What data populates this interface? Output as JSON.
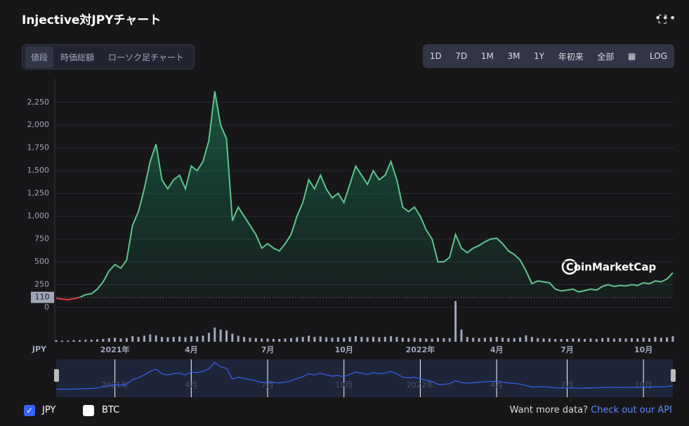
{
  "header": {
    "title": "Injective対JPYチャート"
  },
  "tabs": [
    "値段",
    "時価総額",
    "ローソク足チャート"
  ],
  "ranges": [
    "1D",
    "7D",
    "1M",
    "3M",
    "1Y",
    "年初来",
    "全部",
    "LOG"
  ],
  "watermark": "CoinMarketCap",
  "legend": [
    "JPY",
    "BTC"
  ],
  "footer": {
    "text": "Want more data?",
    "link": "Check out our API"
  },
  "chart_data": {
    "type": "line",
    "y_label": "JPY",
    "color": "#5ec48b",
    "down_color": "#ea3943",
    "nav_color": "#3861fb",
    "reference_line": 110,
    "ylim": [
      0,
      2510
    ],
    "yticks": [
      0,
      250,
      500,
      750,
      {
        "value": 1000,
        "label": "1,000"
      },
      {
        "value": 1250,
        "label": "1,250"
      },
      {
        "value": 1500,
        "label": "1,500"
      },
      {
        "value": 1750,
        "label": "1,750"
      },
      {
        "value": 2000,
        "label": "2,000"
      },
      {
        "value": 2250,
        "label": "2,250"
      }
    ],
    "grid": true,
    "categories": [
      null,
      null,
      null,
      null,
      null,
      null,
      null,
      null,
      null,
      null,
      "2021年",
      null,
      null,
      null,
      null,
      null,
      null,
      null,
      null,
      null,
      null,
      null,
      null,
      "4月",
      null,
      null,
      null,
      null,
      null,
      null,
      null,
      null,
      null,
      null,
      null,
      null,
      "7月",
      null,
      null,
      null,
      null,
      null,
      null,
      null,
      null,
      null,
      null,
      null,
      null,
      "10月",
      null,
      null,
      null,
      null,
      null,
      null,
      null,
      null,
      null,
      null,
      null,
      null,
      "2022年",
      null,
      null,
      null,
      null,
      null,
      null,
      null,
      null,
      null,
      null,
      null,
      null,
      "4月",
      null,
      null,
      null,
      null,
      null,
      null,
      null,
      null,
      null,
      null,
      null,
      "7月",
      null,
      null,
      null,
      null,
      null,
      null,
      null,
      null,
      null,
      null,
      null,
      null,
      "10月",
      null,
      null,
      null,
      null,
      null
    ],
    "series": [
      {
        "name": "JPY",
        "values": [
          100,
          90,
          85,
          95,
          110,
          140,
          150,
          200,
          280,
          400,
          470,
          430,
          520,
          900,
          1050,
          1300,
          1600,
          1790,
          1400,
          1300,
          1400,
          1450,
          1300,
          1550,
          1500,
          1600,
          1830,
          2370,
          2000,
          1850,
          950,
          1100,
          1000,
          900,
          800,
          650,
          700,
          650,
          620,
          700,
          800,
          1000,
          1150,
          1400,
          1300,
          1450,
          1300,
          1200,
          1250,
          1150,
          1350,
          1550,
          1450,
          1350,
          1500,
          1400,
          1450,
          1600,
          1400,
          1100,
          1050,
          1100,
          1000,
          850,
          750,
          500,
          500,
          550,
          800,
          650,
          600,
          650,
          680,
          720,
          750,
          760,
          700,
          620,
          580,
          520,
          400,
          260,
          290,
          280,
          270,
          200,
          180,
          190,
          200,
          170,
          185,
          200,
          190,
          230,
          250,
          230,
          240,
          235,
          250,
          240,
          270,
          260,
          290,
          280,
          310,
          380
        ]
      }
    ],
    "volume": [
      4,
      3,
      3,
      4,
      4,
      5,
      5,
      6,
      7,
      9,
      10,
      8,
      9,
      14,
      12,
      15,
      18,
      16,
      12,
      11,
      12,
      13,
      11,
      14,
      13,
      15,
      22,
      35,
      30,
      28,
      20,
      15,
      12,
      10,
      9,
      8,
      8,
      7,
      7,
      8,
      9,
      11,
      12,
      15,
      12,
      13,
      11,
      10,
      11,
      10,
      12,
      14,
      12,
      11,
      12,
      11,
      12,
      14,
      12,
      10,
      9,
      10,
      9,
      8,
      8,
      10,
      9,
      9,
      100,
      30,
      12,
      10,
      9,
      10,
      11,
      12,
      10,
      9,
      9,
      11,
      16,
      12,
      9,
      8,
      8,
      7,
      7,
      7,
      8,
      8,
      7,
      8,
      7,
      9,
      10,
      8,
      9,
      8,
      9,
      8,
      10,
      9,
      12,
      10,
      11,
      14
    ]
  }
}
